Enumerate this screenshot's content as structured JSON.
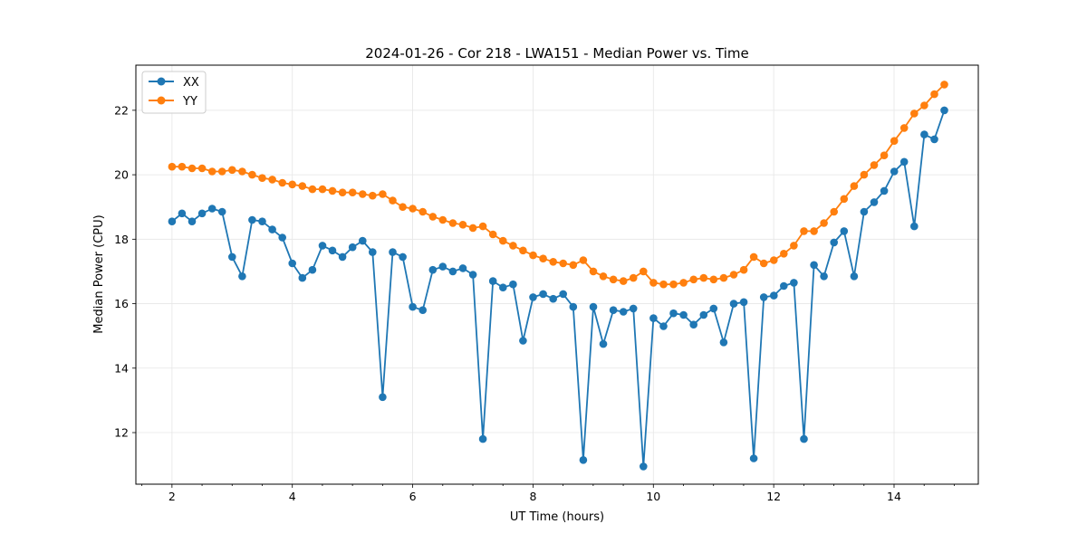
{
  "chart_data": {
    "type": "line",
    "title": "2024-01-26 - Cor 218 - LWA151 - Median Power vs. Time",
    "xlabel": "UT Time (hours)",
    "ylabel": "Median Power (CPU)",
    "xlim": [
      1.4,
      15.4
    ],
    "ylim": [
      10.4,
      23.4
    ],
    "xticks": [
      2,
      4,
      6,
      8,
      10,
      12,
      14
    ],
    "yticks": [
      12,
      14,
      16,
      18,
      20,
      22
    ],
    "x_minor_step": 0.5,
    "grid": true,
    "legend_position": "top-left",
    "x_start": 2.0,
    "x_step": 0.1667,
    "series": [
      {
        "name": "XX",
        "color": "#1f77b4",
        "values": [
          18.55,
          18.8,
          18.55,
          18.8,
          18.95,
          18.85,
          17.45,
          16.85,
          18.6,
          18.55,
          18.3,
          18.05,
          17.25,
          16.8,
          17.05,
          17.8,
          17.65,
          17.45,
          17.75,
          17.95,
          17.6,
          13.1,
          17.6,
          17.45,
          15.9,
          15.8,
          17.05,
          17.15,
          17.0,
          17.1,
          16.9,
          11.8,
          16.7,
          16.5,
          16.6,
          14.85,
          16.2,
          16.3,
          16.15,
          16.3,
          15.9,
          11.15,
          15.9,
          14.75,
          15.8,
          15.75,
          15.85,
          10.95,
          15.55,
          15.3,
          15.7,
          15.65,
          15.35,
          15.65,
          15.85,
          14.8,
          16.0,
          16.05,
          11.2,
          16.2,
          16.25,
          16.55,
          16.65,
          11.8,
          17.2,
          16.85,
          17.9,
          18.25,
          16.85,
          18.85,
          19.15,
          19.5,
          20.1,
          20.4,
          18.4,
          21.25,
          21.1,
          22.0
        ]
      },
      {
        "name": "YY",
        "color": "#ff7f0e",
        "values": [
          20.25,
          20.25,
          20.2,
          20.2,
          20.1,
          20.1,
          20.15,
          20.1,
          20.0,
          19.9,
          19.85,
          19.75,
          19.7,
          19.65,
          19.55,
          19.55,
          19.5,
          19.45,
          19.45,
          19.4,
          19.35,
          19.4,
          19.2,
          19.0,
          18.95,
          18.85,
          18.7,
          18.6,
          18.5,
          18.45,
          18.35,
          18.4,
          18.15,
          17.95,
          17.8,
          17.65,
          17.5,
          17.4,
          17.3,
          17.25,
          17.2,
          17.35,
          17.0,
          16.85,
          16.75,
          16.7,
          16.8,
          17.0,
          16.65,
          16.6,
          16.6,
          16.65,
          16.75,
          16.8,
          16.75,
          16.8,
          16.9,
          17.05,
          17.45,
          17.25,
          17.35,
          17.55,
          17.8,
          18.25,
          18.25,
          18.5,
          18.85,
          19.25,
          19.65,
          20.0,
          20.3,
          20.6,
          21.05,
          21.45,
          21.9,
          22.15,
          22.5,
          22.8
        ]
      }
    ]
  }
}
